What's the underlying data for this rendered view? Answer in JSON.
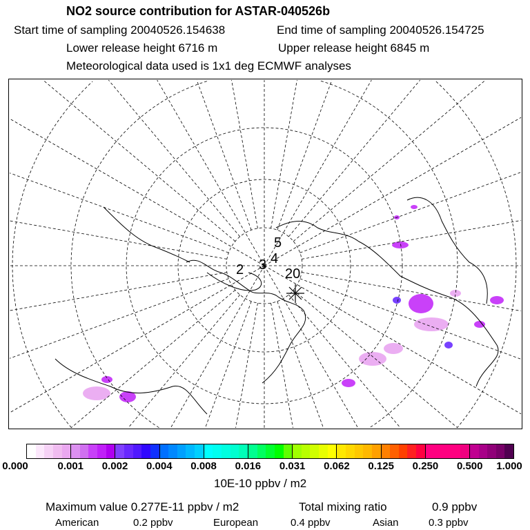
{
  "header": {
    "title": "NO2 source contribution for ASTAR-040526b",
    "start_label": "Start time of sampling 20040526.154638",
    "end_label": "End time of sampling 20040526.154725",
    "lower_label": "Lower release height 6716 m",
    "upper_label": "Upper release height 6845 m",
    "met_label": "Meteorological data used is 1x1 deg ECMWF analyses"
  },
  "map": {
    "projection": "polar-stereographic",
    "trajectory_labels": [
      "5",
      "4",
      "3",
      "2",
      "20"
    ],
    "colors": {
      "plume": "#c020f8",
      "plume_light": "#e8a0f0",
      "plume_dark": "#6020ff",
      "grid": "#000000"
    }
  },
  "chart_data": {
    "type": "heatmap",
    "colorbar": {
      "tick_labels": [
        "0.000",
        "0.001",
        "0.002",
        "0.004",
        "0.008",
        "0.016",
        "0.031",
        "0.062",
        "0.125",
        "0.250",
        "0.500",
        "1.000"
      ],
      "unit_label": "10E-10 ppbv / m2",
      "segments": [
        [
          "#ffffff",
          "#fce8fc",
          "#f6d2f6",
          "#f0bcf0",
          "#eaa8f0"
        ],
        [
          "#dc90f0",
          "#d070f0",
          "#c840f8",
          "#c020f8",
          "#b000f0"
        ],
        [
          "#8040ff",
          "#6828ff",
          "#5018ff",
          "#3008ff",
          "#1030ff"
        ],
        [
          "#0070ff",
          "#0088ff",
          "#00a0ff",
          "#00b8ff",
          "#00d0ff"
        ],
        [
          "#00ffff",
          "#00fff0",
          "#00ffe0",
          "#00ffd0",
          "#00ffb8"
        ],
        [
          "#00ff90",
          "#00ff60",
          "#00ff30",
          "#00ff00",
          "#60ff00"
        ],
        [
          "#a0ff00",
          "#b8ff00",
          "#d0ff00",
          "#e8ff00",
          "#ffff00"
        ],
        [
          "#ffe800",
          "#ffd800",
          "#ffc800",
          "#ffb800",
          "#ffa000"
        ],
        [
          "#ff8000",
          "#ff6000",
          "#ff4000",
          "#ff2020",
          "#ff0040"
        ],
        [
          "#ff0080",
          "#ff0080",
          "#ff0080",
          "#ff0080",
          "#f00080"
        ],
        [
          "#c00090",
          "#a80088",
          "#900078",
          "#780068",
          "#500050"
        ]
      ]
    }
  },
  "footer": {
    "max_label": "Maximum value  0.277E-11 ppbv / m2",
    "total_label": "Total mixing ratio",
    "total_value": "0.9 ppbv",
    "american_label": "American",
    "american_value": "0.2 ppbv",
    "european_label": "European",
    "european_value": "0.4 ppbv",
    "asian_label": "Asian",
    "asian_value": "0.3 ppbv"
  }
}
